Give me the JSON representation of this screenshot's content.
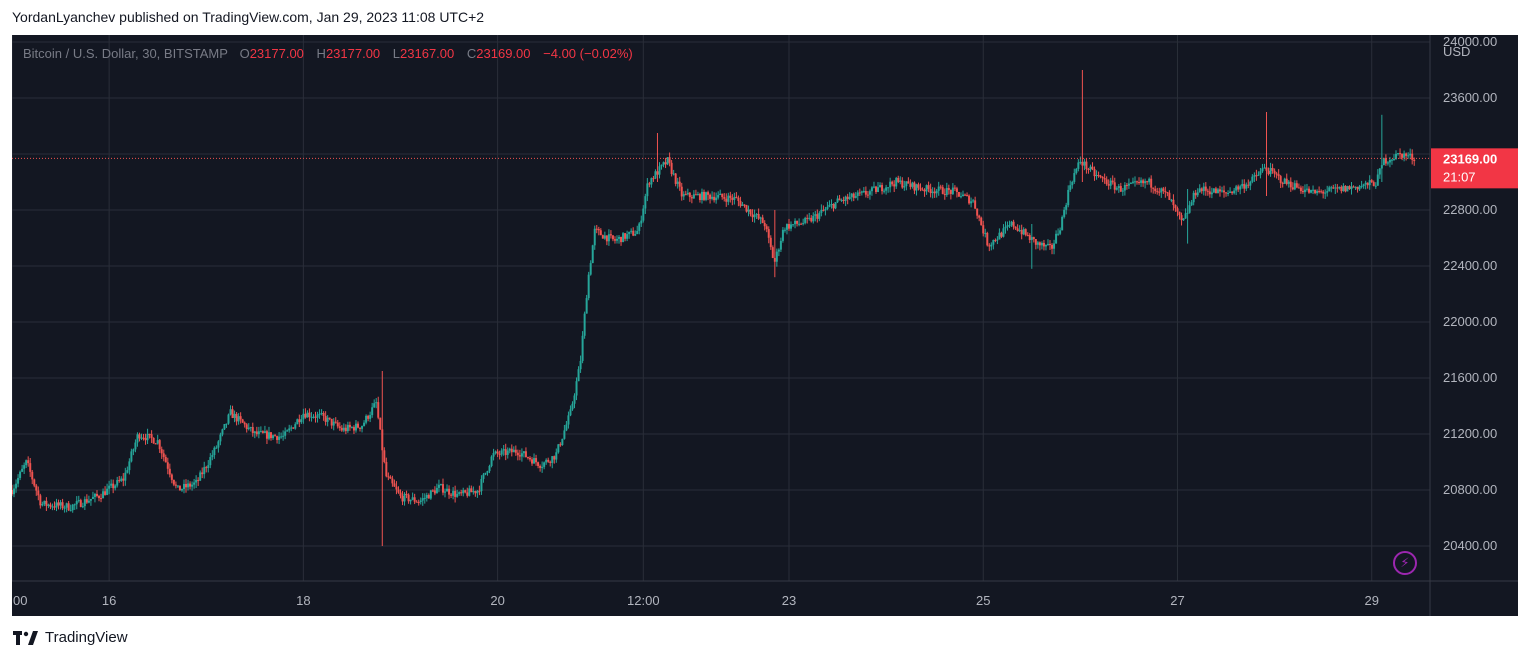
{
  "header": {
    "publish_line": "YordanLyanchev published on TradingView.com, Jan 29, 2023 11:08 UTC+2"
  },
  "legend": {
    "symbol": "Bitcoin / U.S. Dollar, 30, BITSTAMP",
    "open_label": "O",
    "open": "23177.00",
    "high_label": "H",
    "high": "23177.00",
    "low_label": "L",
    "low": "23167.00",
    "close_label": "C",
    "close": "23169.00",
    "change": "−4.00 (−0.02%)"
  },
  "price_axis": {
    "currency": "USD"
  },
  "last_price": {
    "value": "23169.00",
    "countdown": "21:07"
  },
  "footer": {
    "brand": "TradingView"
  },
  "colors": {
    "background": "#131722",
    "grid": "#2a2e39",
    "up": "#26a69a",
    "down": "#ef5350",
    "axis_text": "#b2b5be",
    "last_price_tag": "#f23645"
  },
  "icons": {
    "flash": "lightning-icon",
    "brand": "tradingview-logo-icon"
  },
  "chart_data": {
    "type": "candlestick",
    "title": "Bitcoin / U.S. Dollar, 30, BITSTAMP",
    "currency": "USD",
    "ylim": [
      20150,
      24050
    ],
    "y_ticks": [
      20400,
      20800,
      21200,
      21600,
      22000,
      22400,
      22800,
      23200,
      23600,
      24000
    ],
    "x_ticks": [
      {
        "label": "00",
        "day": 15.0
      },
      {
        "label": "16",
        "day": 16.0
      },
      {
        "label": "18",
        "day": 18.0
      },
      {
        "label": "20",
        "day": 20.0
      },
      {
        "label": "12:00",
        "day": 21.5
      },
      {
        "label": "23",
        "day": 23.0
      },
      {
        "label": "25",
        "day": 25.0
      },
      {
        "label": "27",
        "day": 27.0
      },
      {
        "label": "29",
        "day": 29.0
      }
    ],
    "xlim": [
      15.0,
      29.6
    ],
    "last_day": 29.45,
    "last_price": 23169,
    "approx_close_path": [
      [
        15.0,
        20800
      ],
      [
        15.15,
        21000
      ],
      [
        15.3,
        20700
      ],
      [
        15.6,
        20680
      ],
      [
        15.9,
        20760
      ],
      [
        16.15,
        20880
      ],
      [
        16.3,
        21200
      ],
      [
        16.5,
        21150
      ],
      [
        16.7,
        20800
      ],
      [
        16.9,
        20850
      ],
      [
        17.1,
        21100
      ],
      [
        17.25,
        21350
      ],
      [
        17.5,
        21200
      ],
      [
        17.8,
        21180
      ],
      [
        18.0,
        21350
      ],
      [
        18.2,
        21320
      ],
      [
        18.4,
        21230
      ],
      [
        18.6,
        21260
      ],
      [
        18.75,
        21420
      ],
      [
        18.85,
        20900
      ],
      [
        19.0,
        20750
      ],
      [
        19.2,
        20720
      ],
      [
        19.4,
        20820
      ],
      [
        19.6,
        20760
      ],
      [
        19.8,
        20800
      ],
      [
        19.95,
        21050
      ],
      [
        20.2,
        21080
      ],
      [
        20.45,
        20980
      ],
      [
        20.6,
        21050
      ],
      [
        20.75,
        21350
      ],
      [
        20.85,
        21700
      ],
      [
        20.93,
        22300
      ],
      [
        21.0,
        22650
      ],
      [
        21.2,
        22580
      ],
      [
        21.45,
        22650
      ],
      [
        21.55,
        23000
      ],
      [
        21.75,
        23150
      ],
      [
        21.9,
        22900
      ],
      [
        22.2,
        22900
      ],
      [
        22.45,
        22880
      ],
      [
        22.75,
        22700
      ],
      [
        22.85,
        22420
      ],
      [
        22.95,
        22680
      ],
      [
        23.2,
        22720
      ],
      [
        23.5,
        22860
      ],
      [
        23.8,
        22920
      ],
      [
        24.1,
        23000
      ],
      [
        24.4,
        22950
      ],
      [
        24.7,
        22930
      ],
      [
        24.9,
        22860
      ],
      [
        25.05,
        22550
      ],
      [
        25.3,
        22700
      ],
      [
        25.55,
        22560
      ],
      [
        25.7,
        22520
      ],
      [
        25.8,
        22700
      ],
      [
        25.9,
        23000
      ],
      [
        26.0,
        23150
      ],
      [
        26.15,
        23050
      ],
      [
        26.4,
        22950
      ],
      [
        26.7,
        23000
      ],
      [
        26.9,
        22900
      ],
      [
        27.05,
        22700
      ],
      [
        27.2,
        22950
      ],
      [
        27.5,
        22920
      ],
      [
        27.75,
        23000
      ],
      [
        27.9,
        23100
      ],
      [
        28.1,
        23000
      ],
      [
        28.4,
        22920
      ],
      [
        28.7,
        22950
      ],
      [
        28.95,
        22980
      ],
      [
        29.05,
        23000
      ],
      [
        29.12,
        23150
      ],
      [
        29.3,
        23200
      ],
      [
        29.45,
        23169
      ]
    ],
    "spikes": [
      {
        "day": 18.82,
        "high": 21650,
        "low": 20400
      },
      {
        "day": 21.65,
        "high": 23350,
        "low": 23000
      },
      {
        "day": 22.85,
        "high": 22800,
        "low": 22320
      },
      {
        "day": 25.5,
        "high": 22700,
        "low": 22380
      },
      {
        "day": 26.02,
        "high": 23800,
        "low": 23000
      },
      {
        "day": 27.1,
        "high": 22950,
        "low": 22560
      },
      {
        "day": 27.92,
        "high": 23500,
        "low": 22900
      },
      {
        "day": 29.1,
        "high": 23480,
        "low": 23000
      }
    ]
  }
}
